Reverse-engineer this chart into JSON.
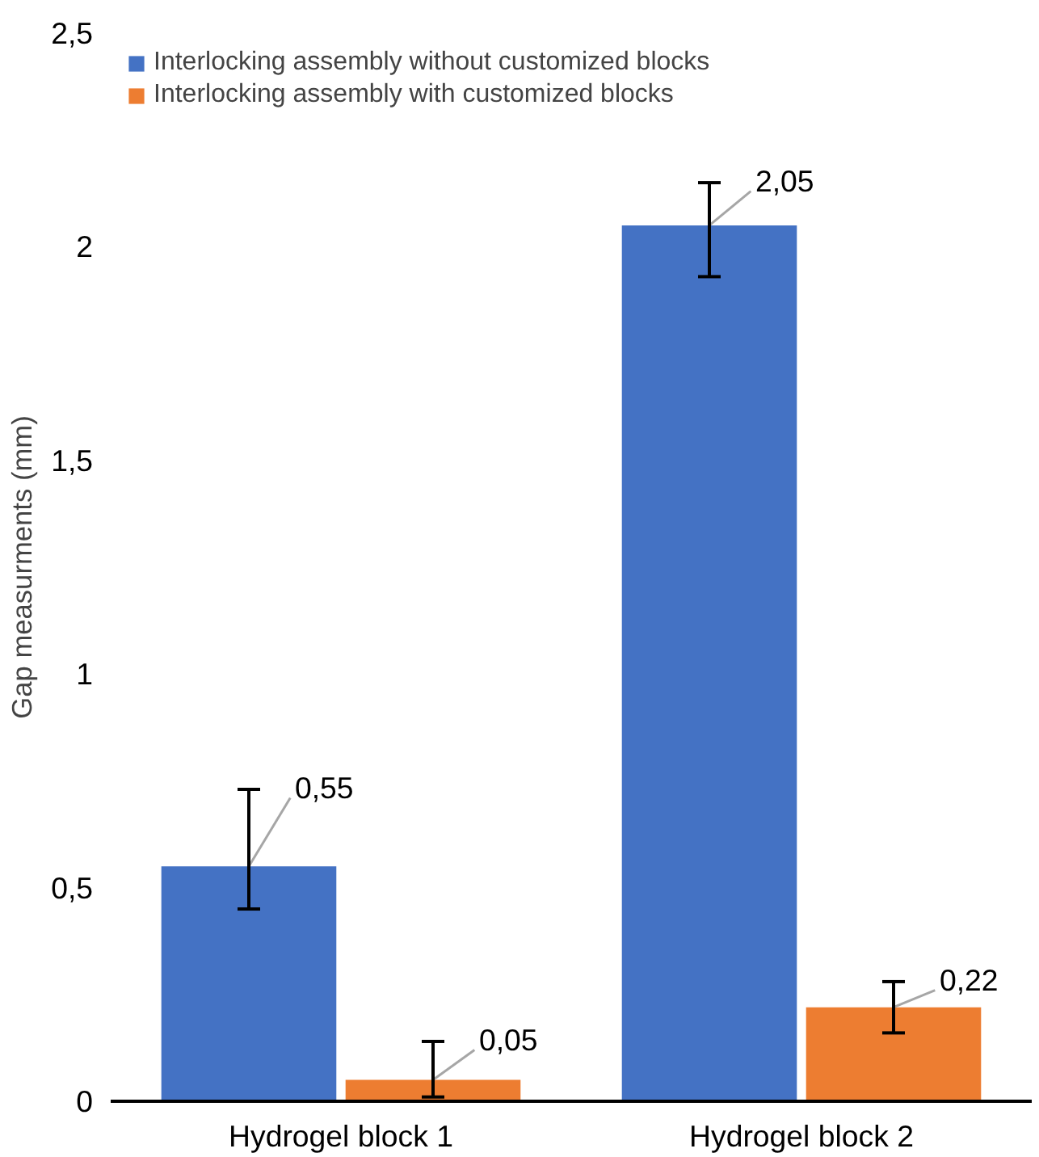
{
  "chart_data": {
    "type": "bar",
    "ylabel": "Gap measurments (mm)",
    "categories": [
      "Hydrogel block 1",
      "Hydrogel block 2"
    ],
    "series": [
      {
        "name": "Interlocking assembly without customized blocks",
        "color": "#4472c4",
        "values": [
          0.55,
          2.05
        ],
        "value_labels": [
          "0,55",
          "2,05"
        ],
        "errors": [
          [
            0.45,
            0.73
          ],
          [
            1.93,
            2.15
          ]
        ]
      },
      {
        "name": "Interlocking assembly with customized blocks",
        "color": "#ed7d31",
        "values": [
          0.05,
          0.22
        ],
        "value_labels": [
          "0,05",
          "0,22"
        ],
        "errors": [
          [
            0.01,
            0.14
          ],
          [
            0.16,
            0.28
          ]
        ]
      }
    ],
    "ylim": [
      0,
      2.5
    ],
    "yticks": [
      0,
      {
        "value": 0.5,
        "label": "0,5"
      },
      1,
      {
        "value": 1.5,
        "label": "1,5"
      },
      2,
      {
        "value": 2.5,
        "label": "2,5"
      }
    ],
    "grid": false,
    "legend": "top left"
  }
}
